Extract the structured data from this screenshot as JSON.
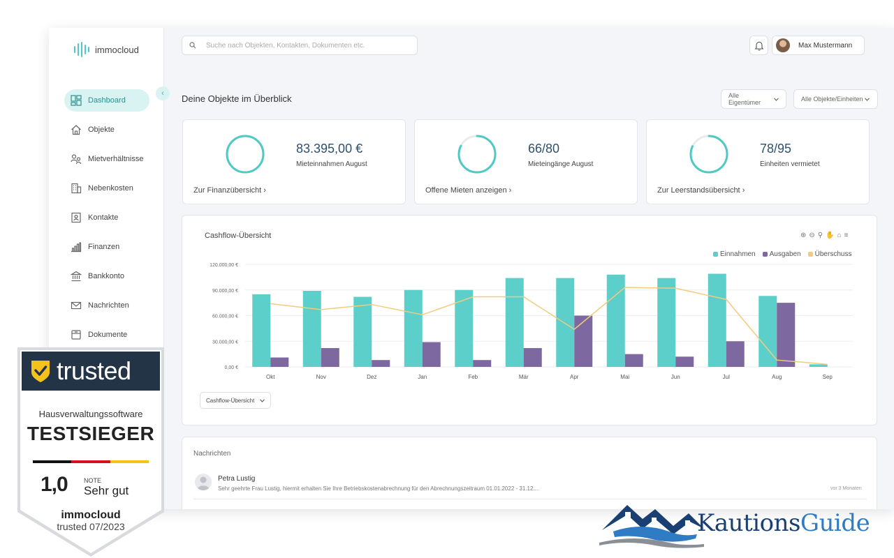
{
  "app": {
    "brand": "immocloud",
    "brand_color": "#4ec9c4",
    "collapse_icon": "chevron-left-icon"
  },
  "sidebar": {
    "items": [
      {
        "label": "Dashboard",
        "icon": "dashboard-icon",
        "active": true
      },
      {
        "label": "Objekte",
        "icon": "house-icon"
      },
      {
        "label": "Mietverhältnisse",
        "icon": "tenants-icon"
      },
      {
        "label": "Nebenkosten",
        "icon": "building-icon"
      },
      {
        "label": "Kontakte",
        "icon": "contact-card-icon"
      },
      {
        "label": "Finanzen",
        "icon": "bar-chart-icon"
      },
      {
        "label": "Bankkonto",
        "icon": "bank-icon"
      },
      {
        "label": "Nachrichten",
        "icon": "envelope-icon"
      },
      {
        "label": "Dokumente",
        "icon": "folder-icon"
      }
    ]
  },
  "header": {
    "search_placeholder": "Suche nach Objekten, Kontakten, Dokumenten etc.",
    "user_name": "Max Mustermann",
    "notification_icon": "bell-icon"
  },
  "overview": {
    "title": "Deine Objekte im Überblick",
    "filter_owner": "Alle Eigentümer",
    "filter_objects": "Alle Objekte/Einheiten"
  },
  "kpis": [
    {
      "value": "83.395,00 €",
      "label": "Mieteinnahmen August",
      "link": "Zur Finanzübersicht",
      "fill": 1.0
    },
    {
      "value": "66/80",
      "label": "Mieteingänge August",
      "link": "Offene Mieten anzeigen",
      "fill": 0.825
    },
    {
      "value": "78/95",
      "label": "Einheiten vermietet",
      "link": "Zur Leerstandsübersicht",
      "fill": 0.82
    }
  ],
  "colors": {
    "einnahmen": "#5ccfcb",
    "ausgaben": "#7e68a0",
    "ueberschuss": "#f2cb7e",
    "ring": "#4ec9c4",
    "ring_track": "#e8ebee"
  },
  "chart_data": {
    "type": "bar",
    "title": "Cashflow-Übersicht",
    "categories": [
      "Okt",
      "Nov",
      "Dez",
      "Jan",
      "Feb",
      "Mär",
      "Apr",
      "Mai",
      "Jun",
      "Jul",
      "Aug",
      "Sep"
    ],
    "series": [
      {
        "name": "Einnahmen",
        "type": "bar",
        "values": [
          85000,
          89000,
          82000,
          90000,
          90000,
          104000,
          104000,
          108000,
          104000,
          109000,
          83000,
          3000
        ]
      },
      {
        "name": "Ausgaben",
        "type": "bar",
        "values": [
          11000,
          22000,
          8000,
          29000,
          8000,
          22000,
          60000,
          15000,
          12000,
          30000,
          75000,
          0
        ]
      },
      {
        "name": "Überschuss",
        "type": "line",
        "values": [
          74000,
          67000,
          73000,
          61000,
          82000,
          82000,
          44000,
          93000,
          92000,
          79000,
          8000,
          3000
        ]
      }
    ],
    "ylim": [
      0,
      120000
    ],
    "yticks": [
      "0,00 €",
      "30.000,00 €",
      "60.000,00 €",
      "90.000,00 €",
      "120.000,00 €"
    ],
    "ytick_values": [
      0,
      30000,
      60000,
      90000,
      120000
    ],
    "legend_position": "top-right",
    "grid": true,
    "tool_icons": [
      "zoom-in-icon",
      "zoom-out-icon",
      "magnifier-icon",
      "pan-hand-icon",
      "home-icon",
      "menu-icon"
    ],
    "select_label": "Cashflow-Übersicht"
  },
  "messages": {
    "title": "Nachrichten",
    "items": [
      {
        "sender": "Petra Lustig",
        "text": "Sehr geehrte Frau Lustig, hiermit erhalten Sie Ihre Betriebskostenabrechnung für den Abrechnungszeitraum 01.01.2022 - 31.12....",
        "time": "vor 3 Monaten"
      }
    ]
  },
  "badge": {
    "word": "trusted",
    "category": "Hausverwaltungssoftware",
    "award": "TESTSIEGER",
    "score": "1,0",
    "note_label": "NOTE",
    "grade": "Sehr gut",
    "brand": "immocloud",
    "date": "trusted 07/2023"
  },
  "partner_logo": {
    "part1": "Kautions",
    "part2": "Guide"
  }
}
